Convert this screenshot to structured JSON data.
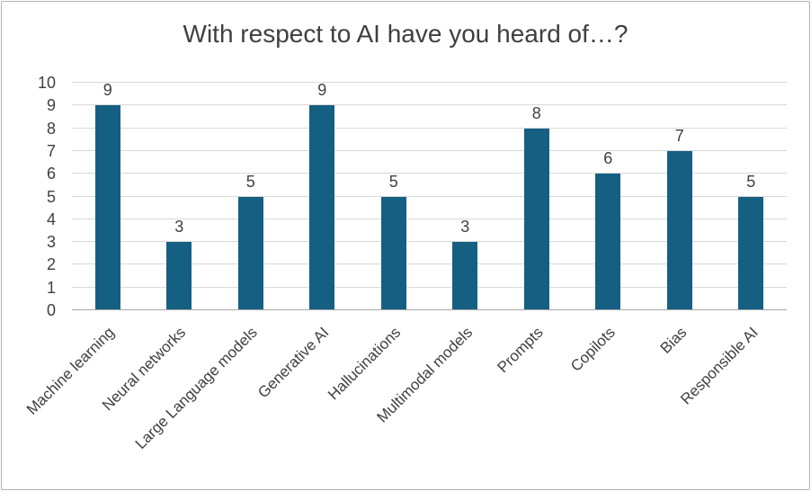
{
  "chart_data": {
    "type": "bar",
    "title": "With respect to AI have you heard of…?",
    "categories": [
      "Machine learning",
      "Neural networks",
      "Large Language models",
      "Generative AI",
      "Hallucinations",
      "Multimodal models",
      "Prompts",
      "Copilots",
      "Bias",
      "Responsible AI"
    ],
    "values": [
      9,
      3,
      5,
      9,
      5,
      3,
      8,
      6,
      7,
      5
    ],
    "xlabel": "",
    "ylabel": "",
    "ylim": [
      0,
      10
    ],
    "ytick_step": 1,
    "grid": true,
    "legend": "none",
    "show_data_labels": true,
    "bar_color": "#156082",
    "gridline_color": "#d8d8d8",
    "axis_line_color": "#a6a6a6",
    "text_color": "#404040"
  }
}
